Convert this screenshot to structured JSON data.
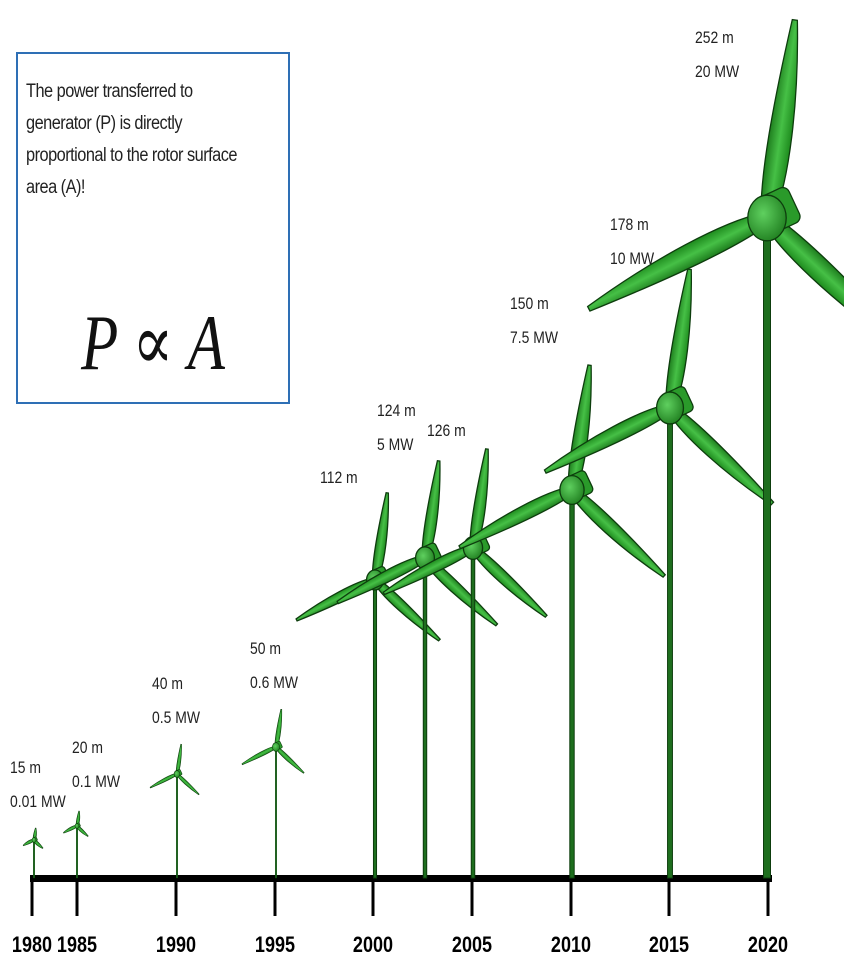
{
  "info": {
    "text": "The power transferred to generator (P) is directly proportional to the rotor surface area (A)!",
    "formula": "P ∝ A"
  },
  "colors": {
    "blade_fill": "#2fa82f",
    "blade_stroke": "#0d3d0d",
    "tower": "#1e6e1e",
    "axis": "#000000",
    "box_border": "#2e6fb5"
  },
  "timeline": {
    "years": [
      "1980",
      "1985",
      "1990",
      "1995",
      "2000",
      "2005",
      "2010",
      "2015",
      "2020"
    ]
  },
  "turbines": [
    {
      "year": "1980",
      "diameter": "15 m",
      "power": "0.01 MW"
    },
    {
      "year": "1985",
      "diameter": "20 m",
      "power": "0.1 MW"
    },
    {
      "year": "1990",
      "diameter": "40 m",
      "power": "0.5 MW"
    },
    {
      "year": "1995",
      "diameter": "50 m",
      "power": "0.6 MW"
    },
    {
      "year": "2000",
      "diameter": "112 m",
      "power": ""
    },
    {
      "year": "2003",
      "diameter": "124 m",
      "power": "5 MW"
    },
    {
      "year": "2005",
      "diameter": "126 m",
      "power": ""
    },
    {
      "year": "2010",
      "diameter": "150 m",
      "power": "7.5 MW"
    },
    {
      "year": "2015",
      "diameter": "178 m",
      "power": "10 MW"
    },
    {
      "year": "2020",
      "diameter": "252 m",
      "power": "20 MW"
    }
  ]
}
